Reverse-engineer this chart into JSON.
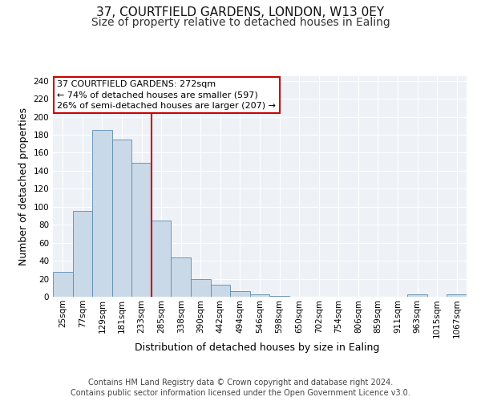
{
  "title_line1": "37, COURTFIELD GARDENS, LONDON, W13 0EY",
  "title_line2": "Size of property relative to detached houses in Ealing",
  "xlabel": "Distribution of detached houses by size in Ealing",
  "ylabel": "Number of detached properties",
  "categories": [
    "25sqm",
    "77sqm",
    "129sqm",
    "181sqm",
    "233sqm",
    "285sqm",
    "338sqm",
    "390sqm",
    "442sqm",
    "494sqm",
    "546sqm",
    "598sqm",
    "650sqm",
    "702sqm",
    "754sqm",
    "806sqm",
    "859sqm",
    "911sqm",
    "963sqm",
    "1015sqm",
    "1067sqm"
  ],
  "values": [
    28,
    95,
    185,
    175,
    149,
    85,
    44,
    20,
    13,
    6,
    3,
    1,
    0,
    0,
    0,
    0,
    0,
    0,
    3,
    0,
    3
  ],
  "bar_color": "#c9d9e8",
  "bar_edge_color": "#5a8bb0",
  "vline_x_index": 5,
  "vline_color": "#cc0000",
  "annotation_text": "37 COURTFIELD GARDENS: 272sqm\n← 74% of detached houses are smaller (597)\n26% of semi-detached houses are larger (207) →",
  "annotation_box_color": "#cc0000",
  "ylim": [
    0,
    245
  ],
  "yticks": [
    0,
    20,
    40,
    60,
    80,
    100,
    120,
    140,
    160,
    180,
    200,
    220,
    240
  ],
  "footnote_line1": "Contains HM Land Registry data © Crown copyright and database right 2024.",
  "footnote_line2": "Contains public sector information licensed under the Open Government Licence v3.0.",
  "background_color": "#eef2f7",
  "grid_color": "#ffffff",
  "title_fontsize": 11,
  "subtitle_fontsize": 10,
  "axis_label_fontsize": 9,
  "tick_fontsize": 7.5,
  "footnote_fontsize": 7
}
